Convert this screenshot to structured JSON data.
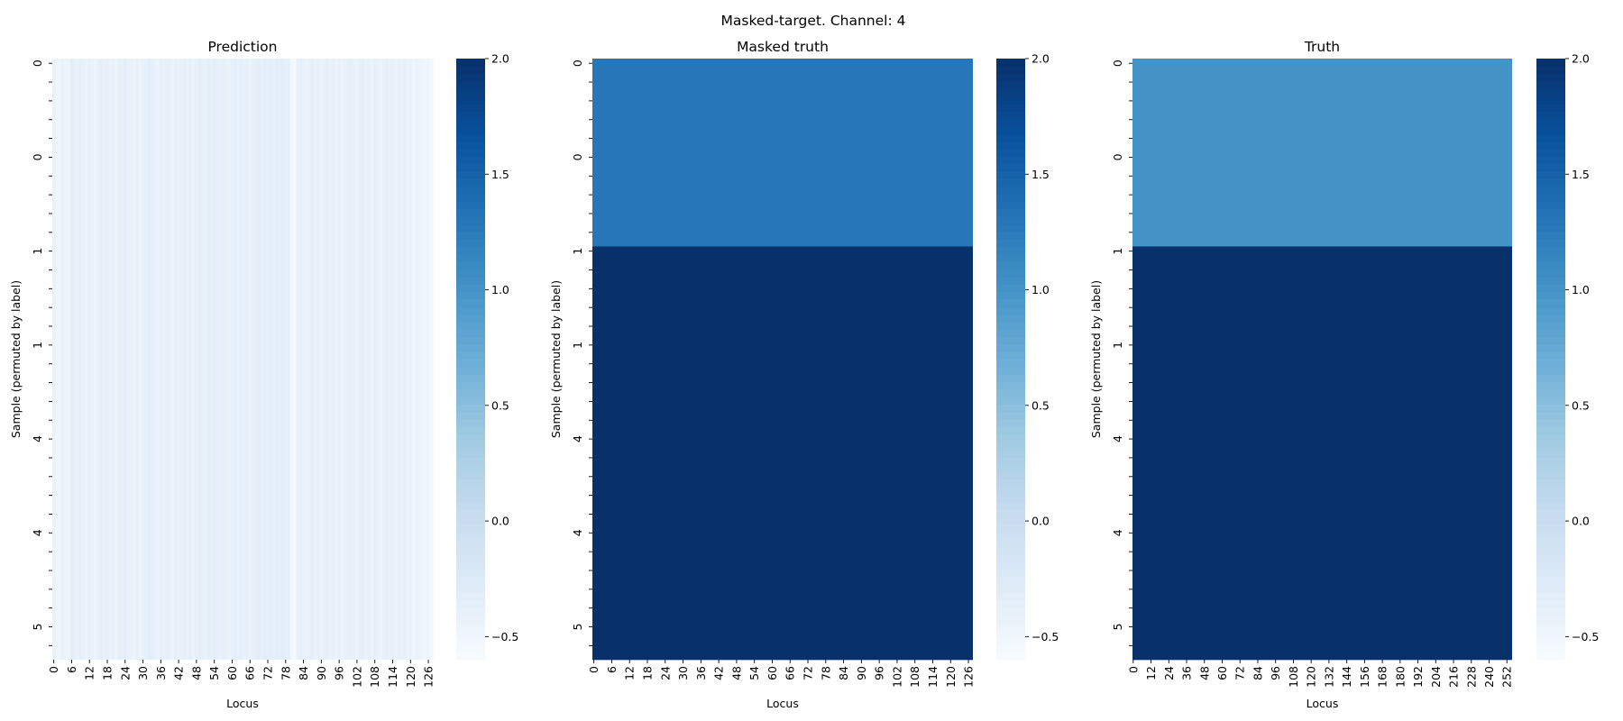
{
  "figure": {
    "suptitle": "Masked-target. Channel: 4"
  },
  "colormap": {
    "name": "Blues",
    "stops": [
      "#f7fbff",
      "#deebf7",
      "#c6dbef",
      "#9ecae1",
      "#6baed6",
      "#4292c6",
      "#2171b5",
      "#08519c",
      "#08306b"
    ]
  },
  "chart_data": [
    {
      "type": "heatmap",
      "title": "Prediction",
      "xlabel": "Locus",
      "ylabel": "Sample (permuted by label)",
      "n_cols": 128,
      "n_rows": 64,
      "x_tick_step": 6,
      "x_tick_labels": [
        "0",
        "6",
        "12",
        "18",
        "24",
        "30",
        "36",
        "42",
        "48",
        "54",
        "60",
        "66",
        "72",
        "78",
        "84",
        "90",
        "96",
        "102",
        "108",
        "114",
        "120",
        "126"
      ],
      "y_tick_labels": [
        "0",
        "0",
        "1",
        "1",
        "4",
        "4",
        "5"
      ],
      "vmin": -0.6,
      "vmax": 2.0,
      "colorbar_ticks": [
        -0.5,
        0.0,
        0.5,
        1.0,
        1.5,
        2.0
      ],
      "colorbar_tick_labels": [
        "−0.5",
        "0.0",
        "0.5",
        "1.0",
        "1.5",
        "2.0"
      ],
      "column_values": [
        -0.42,
        -0.5,
        -0.46,
        -0.4,
        -0.44,
        -0.48,
        -0.34,
        -0.38,
        -0.42,
        -0.36,
        -0.4,
        -0.44,
        -0.38,
        -0.42,
        -0.46,
        -0.4,
        -0.36,
        -0.42,
        -0.38,
        -0.44,
        -0.4,
        -0.46,
        -0.36,
        -0.4,
        -0.34,
        -0.38,
        -0.42,
        -0.44,
        -0.4,
        -0.46,
        -0.42,
        -0.38,
        -0.32,
        -0.36,
        -0.4,
        -0.44,
        -0.38,
        -0.42,
        -0.36,
        -0.4,
        -0.44,
        -0.38,
        -0.42,
        -0.4,
        -0.36,
        -0.42,
        -0.38,
        -0.44,
        -0.4,
        -0.34,
        -0.38,
        -0.42,
        -0.36,
        -0.4,
        -0.34,
        -0.38,
        -0.42,
        -0.36,
        -0.4,
        -0.44,
        -0.38,
        -0.34,
        -0.4,
        -0.36,
        -0.42,
        -0.38,
        -0.44,
        -0.4,
        -0.36,
        -0.34,
        -0.38,
        -0.32,
        -0.36,
        -0.34,
        -0.38,
        -0.32,
        -0.36,
        -0.34,
        -0.38,
        -0.36,
        -0.52,
        -0.58,
        -0.4,
        -0.38,
        -0.42,
        -0.44,
        -0.4,
        -0.36,
        -0.42,
        -0.38,
        -0.44,
        -0.4,
        -0.36,
        -0.42,
        -0.38,
        -0.44,
        -0.4,
        -0.46,
        -0.42,
        -0.38,
        -0.36,
        -0.4,
        -0.44,
        -0.38,
        -0.36,
        -0.42,
        -0.4,
        -0.44,
        -0.38,
        -0.42,
        -0.46,
        -0.4,
        -0.36,
        -0.42,
        -0.38,
        -0.44,
        -0.4,
        -0.42,
        -0.38,
        -0.44,
        -0.4,
        -0.46,
        -0.42,
        -0.44,
        -0.48,
        -0.5,
        -0.46,
        -0.52
      ]
    },
    {
      "type": "heatmap",
      "title": "Masked truth",
      "xlabel": "Locus",
      "ylabel": "Sample (permuted by label)",
      "n_cols": 128,
      "n_rows": 64,
      "x_tick_step": 6,
      "x_tick_labels": [
        "0",
        "6",
        "12",
        "18",
        "24",
        "30",
        "36",
        "42",
        "48",
        "54",
        "60",
        "66",
        "72",
        "78",
        "84",
        "90",
        "96",
        "102",
        "108",
        "114",
        "120",
        "126"
      ],
      "y_tick_labels": [
        "0",
        "0",
        "1",
        "1",
        "4",
        "4",
        "5"
      ],
      "vmin": -0.6,
      "vmax": 2.0,
      "colorbar_ticks": [
        -0.5,
        0.0,
        0.5,
        1.0,
        1.5,
        2.0
      ],
      "colorbar_tick_labels": [
        "−0.5",
        "0.0",
        "0.5",
        "1.0",
        "1.5",
        "2.0"
      ],
      "row_blocks": [
        {
          "start": 0,
          "end": 20,
          "value": 1.3
        },
        {
          "start": 20,
          "end": 64,
          "value": 2.0
        }
      ]
    },
    {
      "type": "heatmap",
      "title": "Truth",
      "xlabel": "Locus",
      "ylabel": "Sample (permuted by label)",
      "n_cols": 256,
      "n_rows": 64,
      "x_tick_step": 12,
      "x_tick_labels": [
        "0",
        "12",
        "24",
        "36",
        "48",
        "60",
        "72",
        "84",
        "96",
        "108",
        "120",
        "132",
        "144",
        "156",
        "168",
        "180",
        "192",
        "204",
        "216",
        "228",
        "240",
        "252"
      ],
      "y_tick_labels": [
        "0",
        "0",
        "1",
        "1",
        "4",
        "4",
        "5"
      ],
      "vmin": -0.6,
      "vmax": 2.0,
      "colorbar_ticks": [
        -0.5,
        0.0,
        0.5,
        1.0,
        1.5,
        2.0
      ],
      "colorbar_tick_labels": [
        "−0.5",
        "0.0",
        "0.5",
        "1.0",
        "1.5",
        "2.0"
      ],
      "row_blocks": [
        {
          "start": 0,
          "end": 20,
          "value": 1.0
        },
        {
          "start": 20,
          "end": 64,
          "value": 2.0
        }
      ]
    }
  ]
}
